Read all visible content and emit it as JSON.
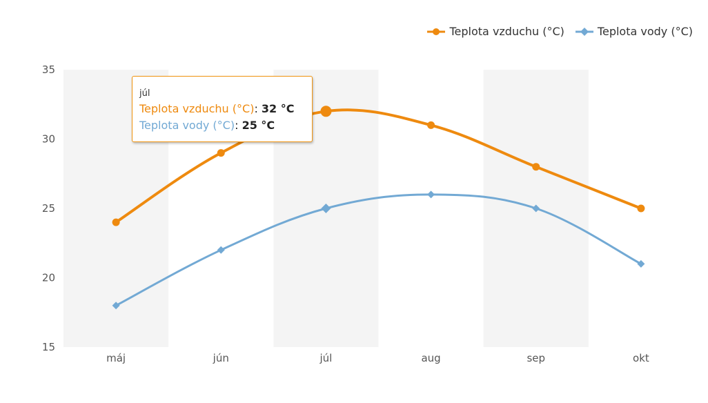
{
  "colors": {
    "air": "#ee8a0f",
    "water": "#72a9d4",
    "band": "#f4f4f4",
    "text": "#555555"
  },
  "legend": [
    {
      "label": "Teplota vzduchu (°C)",
      "marker": "circle"
    },
    {
      "label": "Teplota vody (°C)",
      "marker": "diamond"
    }
  ],
  "tooltip": {
    "title": "júl",
    "rows": [
      {
        "label": "Teplota vzduchu (°C)",
        "value": "32 °C"
      },
      {
        "label": "Teplota vody (°C)",
        "value": "25 °C"
      }
    ]
  },
  "chart_data": {
    "type": "line",
    "categories": [
      "máj",
      "jún",
      "júl",
      "aug",
      "sep",
      "okt"
    ],
    "series": [
      {
        "name": "Teplota vzduchu (°C)",
        "values": [
          24,
          29,
          32,
          31,
          28,
          25
        ]
      },
      {
        "name": "Teplota vody (°C)",
        "values": [
          18,
          22,
          25,
          26,
          25,
          21
        ]
      }
    ],
    "ylim": [
      15,
      35
    ],
    "yticks": [
      15,
      20,
      25,
      30,
      35
    ],
    "highlight_category": "júl",
    "grid": false,
    "legend_position": "top-right"
  }
}
